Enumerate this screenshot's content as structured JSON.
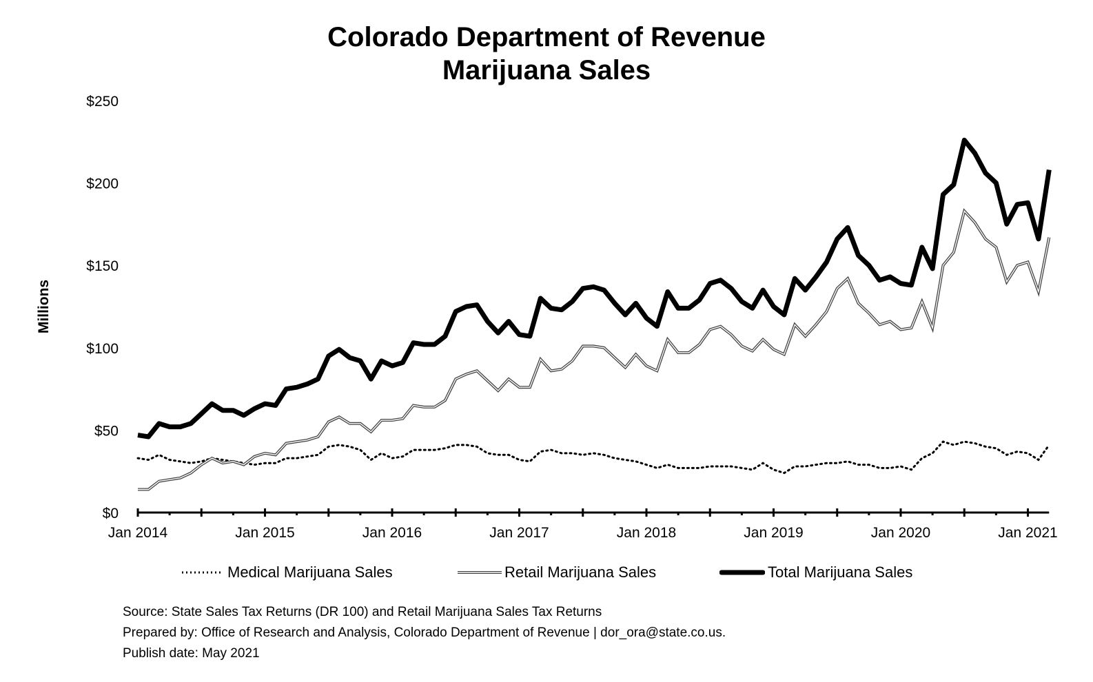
{
  "chart_data": {
    "type": "line",
    "title": "Colorado Department of Revenue",
    "subtitle": "Marijuana Sales",
    "ylabel": "Millions",
    "xlabel": "",
    "ylim": [
      0,
      250
    ],
    "yticks": [
      0,
      50,
      100,
      150,
      200,
      250
    ],
    "ytick_labels": [
      "$0",
      "$50",
      "$100",
      "$150",
      "$200",
      "$250"
    ],
    "xtick_labels": [
      "Jan 2014",
      "Jan 2015",
      "Jan 2016",
      "Jan 2017",
      "Jan 2018",
      "Jan 2019",
      "Jan 2020",
      "Jan 2021"
    ],
    "x_start": "Jan 2014",
    "x_end": "Mar 2021",
    "grid": false,
    "legend_position": "bottom",
    "series": [
      {
        "name": "Medical Marijuana Sales",
        "style": "dotted",
        "values": [
          33,
          32,
          35,
          32,
          31,
          30,
          31,
          33,
          32,
          31,
          30,
          29,
          30,
          30,
          33,
          33,
          34,
          35,
          40,
          41,
          40,
          38,
          32,
          36,
          33,
          34,
          38,
          38,
          38,
          39,
          41,
          41,
          40,
          36,
          35,
          35,
          32,
          31,
          37,
          38,
          36,
          36,
          35,
          36,
          35,
          33,
          32,
          31,
          29,
          27,
          29,
          27,
          27,
          27,
          28,
          28,
          28,
          27,
          26,
          30,
          26,
          24,
          28,
          28,
          29,
          30,
          30,
          31,
          29,
          29,
          27,
          27,
          28,
          26,
          33,
          36,
          43,
          41,
          43,
          42,
          40,
          39,
          35,
          37,
          36,
          32,
          41
        ]
      },
      {
        "name": "Retail Marijuana Sales",
        "style": "double",
        "values": [
          14,
          14,
          19,
          20,
          21,
          24,
          29,
          33,
          30,
          31,
          29,
          34,
          36,
          35,
          42,
          43,
          44,
          46,
          55,
          58,
          54,
          54,
          49,
          56,
          56,
          57,
          65,
          64,
          64,
          68,
          81,
          84,
          86,
          80,
          74,
          81,
          76,
          76,
          93,
          86,
          87,
          92,
          101,
          101,
          100,
          94,
          88,
          96,
          89,
          86,
          105,
          97,
          97,
          102,
          111,
          113,
          108,
          101,
          98,
          105,
          99,
          96,
          114,
          107,
          114,
          122,
          136,
          142,
          127,
          121,
          114,
          116,
          111,
          112,
          128,
          112,
          150,
          158,
          183,
          176,
          166,
          161,
          140,
          150,
          152,
          134,
          167
        ]
      },
      {
        "name": "Total Marijuana Sales",
        "style": "thick",
        "values": [
          47,
          46,
          54,
          52,
          52,
          54,
          60,
          66,
          62,
          62,
          59,
          63,
          66,
          65,
          75,
          76,
          78,
          81,
          95,
          99,
          94,
          92,
          81,
          92,
          89,
          91,
          103,
          102,
          102,
          107,
          122,
          125,
          126,
          116,
          109,
          116,
          108,
          107,
          130,
          124,
          123,
          128,
          136,
          137,
          135,
          127,
          120,
          127,
          118,
          113,
          134,
          124,
          124,
          129,
          139,
          141,
          136,
          128,
          124,
          135,
          125,
          120,
          142,
          135,
          143,
          152,
          166,
          173,
          156,
          150,
          141,
          143,
          139,
          138,
          161,
          148,
          193,
          199,
          226,
          218,
          206,
          200,
          175,
          187,
          188,
          166,
          208
        ]
      }
    ]
  },
  "legend": {
    "medical_label": "Medical Marijuana Sales",
    "retail_label": "Retail Marijuana Sales",
    "total_label": "Total Marijuana Sales"
  },
  "notes": {
    "source": "Source: State Sales Tax Returns (DR 100) and Retail Marijuana Sales Tax Returns",
    "prepared": "Prepared by: Office of Research and Analysis, Colorado Department of Revenue | dor_ora@state.co.us.",
    "publish": "Publish date: May 2021"
  }
}
